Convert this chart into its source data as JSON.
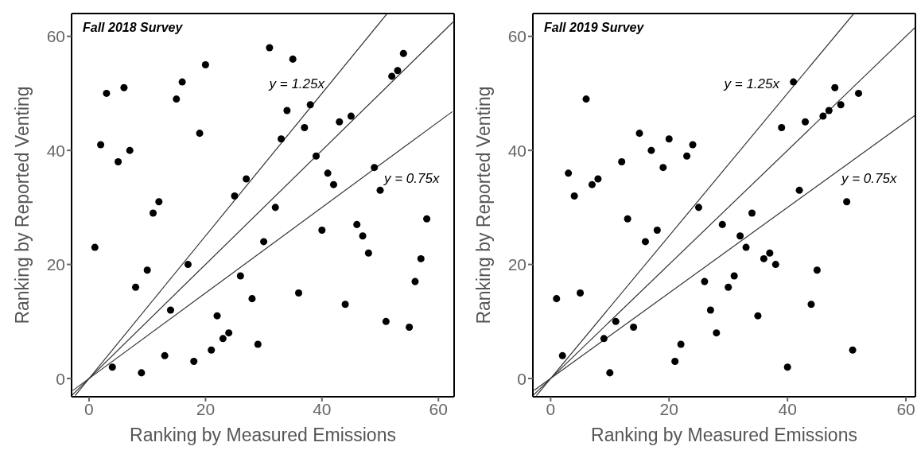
{
  "chart_data": [
    {
      "type": "scatter",
      "title": "Fall 2018 Survey",
      "xlabel": "Ranking by Measured Emissions",
      "ylabel": "Ranking by Reported Venting",
      "xlim": [
        -3,
        62.7
      ],
      "ylim": [
        -3.2,
        64
      ],
      "xticks": [
        0,
        20,
        40,
        60
      ],
      "yticks": [
        0,
        20,
        40,
        60
      ],
      "series": [
        {
          "color": "#000000",
          "marker": "circle",
          "x": [
            1,
            2,
            3,
            4,
            5,
            6,
            7,
            8,
            9,
            10,
            11,
            12,
            13,
            14,
            15,
            16,
            17,
            18,
            19,
            20,
            21,
            22,
            23,
            24,
            25,
            26,
            27,
            28,
            29,
            30,
            31,
            32,
            33,
            34,
            35,
            36,
            37,
            38,
            39,
            40,
            41,
            42,
            43,
            44,
            45,
            46,
            47,
            48,
            49,
            50,
            51,
            52,
            53,
            54,
            55,
            56,
            57,
            58
          ],
          "values": [
            23,
            41,
            50,
            2,
            38,
            51,
            40,
            16,
            1,
            19,
            29,
            31,
            4,
            12,
            49,
            52,
            20,
            3,
            43,
            55,
            5,
            11,
            7,
            8,
            32,
            18,
            35,
            14,
            6,
            24,
            58,
            30,
            42,
            47,
            56,
            15,
            44,
            48,
            39,
            26,
            36,
            34,
            45,
            13,
            46,
            27,
            25,
            22,
            37,
            33,
            10,
            53,
            54,
            57,
            9,
            17,
            21,
            28
          ]
        },
        {
          "type": "line",
          "marker": "none",
          "color": "#333333",
          "x": [
            -2.4,
            51.2
          ],
          "values": [
            -3,
            64
          ]
        },
        {
          "type": "line",
          "marker": "none",
          "color": "#333333",
          "x": [
            -3,
            62.5
          ],
          "values": [
            -3,
            62.5
          ]
        },
        {
          "type": "line",
          "marker": "none",
          "color": "#333333",
          "x": [
            -2.8,
            62.4
          ],
          "values": [
            -2.1,
            46.8
          ]
        }
      ],
      "annotations": [
        "y = 1.25x",
        "y = 0.75x"
      ]
    },
    {
      "type": "scatter",
      "title": "Fall 2019 Survey",
      "xlabel": "Ranking by Measured Emissions",
      "ylabel": "Ranking by Reported Venting",
      "xlim": [
        -3,
        61.6
      ],
      "ylim": [
        -3.2,
        64
      ],
      "xticks": [
        0,
        20,
        40,
        60
      ],
      "yticks": [
        0,
        20,
        40,
        60
      ],
      "series": [
        {
          "color": "#000000",
          "marker": "circle",
          "x": [
            1,
            2,
            3,
            4,
            5,
            6,
            7,
            8,
            9,
            10,
            11,
            12,
            13,
            14,
            15,
            16,
            17,
            18,
            19,
            20,
            21,
            22,
            23,
            24,
            25,
            26,
            27,
            28,
            29,
            30,
            31,
            32,
            33,
            34,
            35,
            36,
            37,
            38,
            39,
            40,
            41,
            42,
            43,
            44,
            45,
            46,
            47,
            48,
            49,
            50,
            51,
            52
          ],
          "values": [
            14,
            4,
            36,
            32,
            15,
            49,
            34,
            35,
            7,
            1,
            10,
            38,
            28,
            9,
            43,
            24,
            40,
            26,
            37,
            42,
            3,
            6,
            39,
            41,
            30,
            17,
            12,
            8,
            27,
            16,
            18,
            25,
            23,
            29,
            11,
            21,
            22,
            20,
            44,
            2,
            52,
            33,
            45,
            13,
            19,
            46,
            47,
            51,
            48,
            31,
            5,
            50
          ]
        },
        {
          "type": "line",
          "marker": "none",
          "color": "#333333",
          "x": [
            -2.4,
            51.2
          ],
          "values": [
            -3,
            64
          ]
        },
        {
          "type": "line",
          "marker": "none",
          "color": "#333333",
          "x": [
            -3,
            61.6
          ],
          "values": [
            -3,
            61.6
          ]
        },
        {
          "type": "line",
          "marker": "none",
          "color": "#333333",
          "x": [
            -2.8,
            61.6
          ],
          "values": [
            -2.1,
            46.2
          ]
        }
      ],
      "annotations": [
        "y = 1.25x",
        "y = 0.75x"
      ]
    }
  ]
}
